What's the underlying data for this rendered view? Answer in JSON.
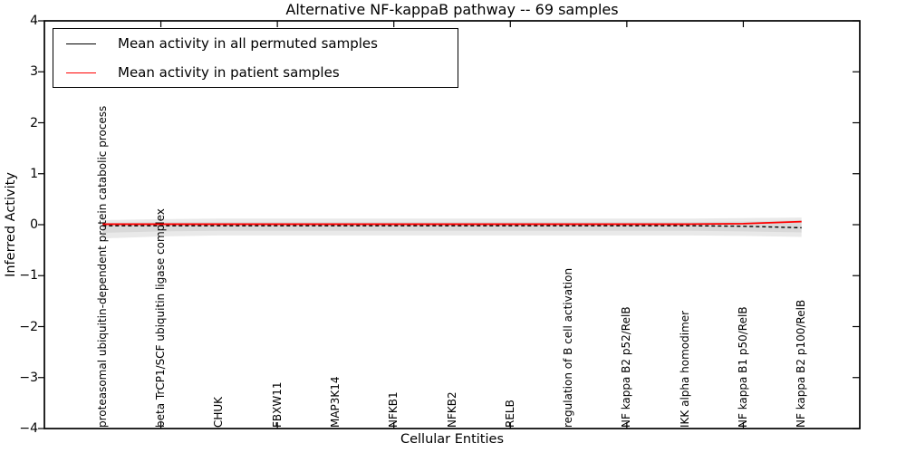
{
  "chart_data": {
    "type": "line",
    "title": "Alternative NF-kappaB pathway -- 69 samples",
    "xlabel": "Cellular Entities",
    "ylabel": "Inferred Activity",
    "categories": [
      "proteasomal ubiquitin-dependent protein catabolic process",
      "beta TrCP1/SCF ubiquitin ligase complex",
      "CHUK",
      "FBXW11",
      "MAP3K14",
      "NFKB1",
      "NFKB2",
      "RELB",
      "regulation of B cell activation",
      "NF kappa B2 p52/RelB",
      "IKK alpha homodimer",
      "NF kappa B1 p50/RelB",
      "NF kappa B2 p100/RelB"
    ],
    "x": [
      0,
      1,
      2,
      3,
      4,
      5,
      6,
      7,
      8,
      9,
      10,
      11,
      12
    ],
    "series": [
      {
        "name": "Mean activity in all permuted samples",
        "color": "#000000",
        "style": "dashed",
        "values": [
          -0.02,
          -0.02,
          -0.02,
          -0.02,
          -0.02,
          -0.02,
          -0.02,
          -0.02,
          -0.02,
          -0.02,
          -0.02,
          -0.03,
          -0.06
        ]
      },
      {
        "name": "Mean activity in patient samples",
        "color": "#ff0000",
        "style": "solid",
        "values": [
          0.01,
          0.01,
          0.01,
          0.01,
          0.01,
          0.01,
          0.01,
          0.01,
          0.01,
          0.01,
          0.01,
          0.02,
          0.06
        ]
      }
    ],
    "bands": [
      {
        "name": "permuted-spread-outer",
        "color": "#e9e9e9",
        "upper": [
          0.09,
          0.11,
          0.12,
          0.12,
          0.12,
          0.12,
          0.12,
          0.12,
          0.12,
          0.12,
          0.12,
          0.13,
          0.14
        ],
        "lower": [
          -0.27,
          -0.23,
          -0.21,
          -0.21,
          -0.21,
          -0.21,
          -0.21,
          -0.21,
          -0.21,
          -0.21,
          -0.21,
          -0.22,
          -0.24
        ]
      },
      {
        "name": "permuted-spread-inner",
        "color": "#d9d9d9",
        "upper": [
          0.04,
          0.05,
          0.05,
          0.05,
          0.05,
          0.05,
          0.05,
          0.05,
          0.05,
          0.05,
          0.05,
          0.06,
          0.09
        ],
        "lower": [
          -0.16,
          -0.13,
          -0.12,
          -0.12,
          -0.12,
          -0.12,
          -0.12,
          -0.12,
          -0.12,
          -0.12,
          -0.12,
          -0.13,
          -0.15
        ]
      }
    ],
    "ylim": [
      -4,
      4
    ],
    "xlim": [
      -1,
      13
    ],
    "yticks": [
      -4,
      -3,
      -2,
      -1,
      0,
      1,
      2,
      3,
      4
    ],
    "ytick_labels": [
      "−4",
      "−3",
      "−2",
      "−1",
      "0",
      "1",
      "2",
      "3",
      "4"
    ],
    "xticks_marked_indices": [
      1,
      3,
      5,
      7,
      9,
      11
    ],
    "grid": false,
    "legend_position": "upper left"
  }
}
